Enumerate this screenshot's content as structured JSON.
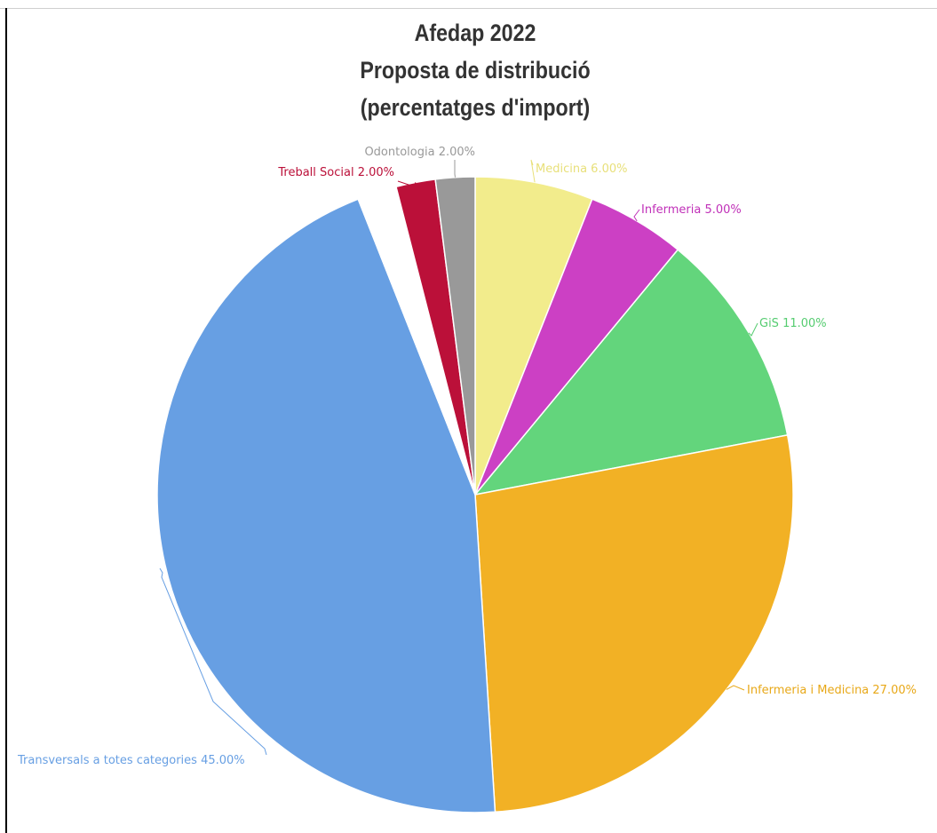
{
  "chart_data": {
    "type": "pie",
    "title": [
      "Afedap 2022",
      "Proposta de distribució",
      "(percentatges d'import)"
    ],
    "slices": [
      {
        "label": "Medicina 6.00%",
        "value": 6,
        "color": "#f2ec8c"
      },
      {
        "label": "Infermeria 5.00%",
        "value": 5,
        "color": "#cc40c4"
      },
      {
        "label": "GiS 11.00%",
        "value": 11,
        "color": "#63d57c"
      },
      {
        "label": "Infermeria i Medicina 27.00%",
        "value": 27,
        "color": "#f2b125"
      },
      {
        "label": "Transversals a totes categories 45.00%",
        "value": 45,
        "color": "#679fe3"
      },
      {
        "label": "",
        "value": 2,
        "color": "#ffffff"
      },
      {
        "label": "Treball Social 2.00%",
        "value": 2,
        "color": "#bb1039"
      },
      {
        "label": "Odontologia 2.00%",
        "value": 2,
        "color": "#999999"
      }
    ],
    "label_colors": {
      "Medicina 6.00%": "#e8e07a",
      "Infermeria 5.00%": "#c030b8",
      "GiS 11.00%": "#55cc70",
      "Infermeria i Medicina 27.00%": "#e8a818",
      "Transversals a totes categories 45.00%": "#679fe3",
      "Treball Social 2.00%": "#bb1039",
      "Odontologia 2.00%": "#999999"
    },
    "legend": "none"
  }
}
